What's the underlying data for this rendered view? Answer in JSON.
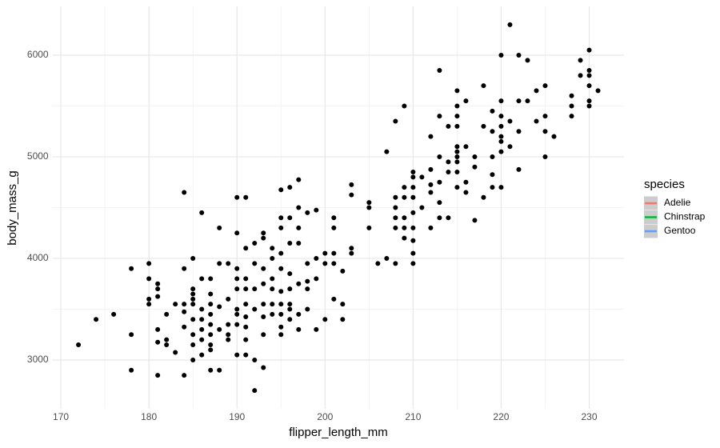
{
  "chart_data": {
    "type": "scatter",
    "x_label": "flipper_length_mm",
    "y_label": "body_mass_g",
    "color": "#000000",
    "xlim": [
      169.05,
      233.95
    ],
    "ylim": [
      2520,
      6480
    ],
    "xticks": [
      170,
      180,
      190,
      200,
      210,
      220,
      230
    ],
    "yticks": [
      3000,
      4000,
      5000,
      6000
    ],
    "minor_xticks": [
      175,
      185,
      195,
      205,
      215,
      225
    ],
    "minor_yticks": [
      3500,
      4500,
      5500
    ],
    "grid": true,
    "legend": {
      "title": "species",
      "position": "right",
      "entries": [
        {
          "name": "Adelie",
          "color": "#F8766D"
        },
        {
          "name": "Chinstrap",
          "color": "#00BA38"
        },
        {
          "name": "Gentoo",
          "color": "#619CFF"
        }
      ]
    },
    "x": [
      172,
      174,
      176,
      178,
      178,
      178,
      180,
      180,
      180,
      180,
      181,
      181,
      181,
      181,
      181,
      181,
      182,
      182,
      182,
      183,
      183,
      184,
      184,
      184,
      184,
      184,
      184,
      185,
      185,
      185,
      185,
      185,
      185,
      185,
      185,
      185,
      186,
      186,
      186,
      186,
      186,
      186,
      186,
      187,
      187,
      187,
      187,
      187,
      187,
      187,
      187,
      187,
      188,
      188,
      188,
      188,
      188,
      189,
      189,
      189,
      189,
      189,
      190,
      190,
      190,
      190,
      190,
      190,
      190,
      190,
      190,
      191,
      191,
      191,
      191,
      191,
      191,
      191,
      191,
      191,
      192,
      192,
      192,
      192,
      192,
      192,
      193,
      193,
      193,
      193,
      193,
      193,
      193,
      193,
      194,
      194,
      194,
      194,
      194,
      194,
      195,
      195,
      195,
      195,
      195,
      195,
      195,
      195,
      195,
      195,
      196,
      196,
      196,
      196,
      196,
      196,
      196,
      196,
      197,
      197,
      197,
      197,
      197,
      197,
      197,
      198,
      198,
      198,
      198,
      198,
      199,
      199,
      199,
      199,
      200,
      200,
      200,
      201,
      201,
      201,
      201,
      201,
      202,
      202,
      202,
      203,
      203,
      203,
      203,
      205,
      205,
      205,
      206,
      207,
      207,
      208,
      208,
      208,
      208,
      208,
      208,
      209,
      209,
      209,
      209,
      209,
      209,
      210,
      210,
      210,
      210,
      210,
      210,
      210,
      210,
      210,
      211,
      211,
      212,
      212,
      212,
      212,
      212,
      213,
      213,
      213,
      213,
      213,
      213,
      214,
      214,
      214,
      214,
      215,
      215,
      215,
      215,
      215,
      215,
      215,
      215,
      215,
      215,
      216,
      216,
      216,
      216,
      217,
      217,
      217,
      218,
      218,
      218,
      219,
      219,
      219,
      219,
      219,
      220,
      220,
      220,
      220,
      220,
      220,
      220,
      220,
      221,
      221,
      221,
      222,
      222,
      222,
      222,
      223,
      223,
      224,
      224,
      225,
      225,
      225,
      225,
      226,
      228,
      228,
      228,
      229,
      229,
      230,
      230,
      230,
      230,
      230,
      230,
      231
    ],
    "values": [
      3150,
      3400,
      3450,
      3900,
      3250,
      2900,
      3950,
      3800,
      3600,
      3550,
      3750,
      3700,
      3625,
      3300,
      3175,
      2850,
      3450,
      3200,
      3150,
      3550,
      3075,
      4650,
      3900,
      3550,
      3475,
      3325,
      2850,
      4000,
      3700,
      3650,
      3600,
      3550,
      3400,
      3250,
      3150,
      3000,
      4450,
      3800,
      3500,
      3400,
      3300,
      3200,
      3050,
      3800,
      3650,
      3550,
      3450,
      3350,
      3250,
      3150,
      3100,
      2900,
      4300,
      3950,
      3525,
      3300,
      2900,
      3950,
      3600,
      3350,
      3250,
      3200,
      4600,
      4250,
      3900,
      3800,
      3700,
      3500,
      3450,
      3350,
      3050,
      4600,
      4100,
      3800,
      3700,
      3550,
      3425,
      3325,
      3200,
      3050,
      4150,
      3950,
      3700,
      3500,
      3000,
      2700,
      4250,
      4200,
      3900,
      3750,
      3550,
      3425,
      3250,
      2925,
      4100,
      4000,
      3800,
      3700,
      3550,
      3450,
      4675,
      4400,
      4300,
      4050,
      3900,
      3675,
      3550,
      3450,
      3325,
      3250,
      4700,
      4400,
      4150,
      3850,
      3700,
      3550,
      3500,
      3400,
      4775,
      4500,
      4300,
      4150,
      3750,
      3450,
      3300,
      4450,
      3950,
      3775,
      3700,
      3500,
      4475,
      4000,
      3800,
      3300,
      4050,
      3950,
      3400,
      4400,
      4300,
      4050,
      3950,
      3600,
      3875,
      3550,
      3400,
      4725,
      4625,
      4100,
      4050,
      4550,
      4500,
      4300,
      3950,
      5050,
      4000,
      5350,
      4600,
      4500,
      4400,
      4300,
      3950,
      5500,
      4700,
      4600,
      4400,
      4300,
      4200,
      4850,
      4800,
      4700,
      4600,
      4450,
      4300,
      4175,
      4050,
      3950,
      4800,
      4500,
      5200,
      4875,
      4725,
      4650,
      4300,
      5850,
      5400,
      5000,
      4750,
      4550,
      4400,
      5300,
      4950,
      4850,
      4400,
      5650,
      5500,
      5400,
      5300,
      5100,
      5050,
      5000,
      4950,
      4850,
      4700,
      5550,
      5100,
      4750,
      4650,
      5000,
      4900,
      4375,
      5700,
      5300,
      4600,
      5450,
      5250,
      5000,
      4825,
      4700,
      6000,
      5550,
      5400,
      5300,
      5200,
      5150,
      5050,
      4700,
      6300,
      5350,
      5100,
      6000,
      5550,
      5250,
      4875,
      5950,
      5550,
      5650,
      5350,
      5700,
      5400,
      5250,
      5000,
      5200,
      5600,
      5500,
      5400,
      5950,
      5800,
      6050,
      5850,
      5800,
      5700,
      5550,
      5500,
      5650
    ]
  }
}
